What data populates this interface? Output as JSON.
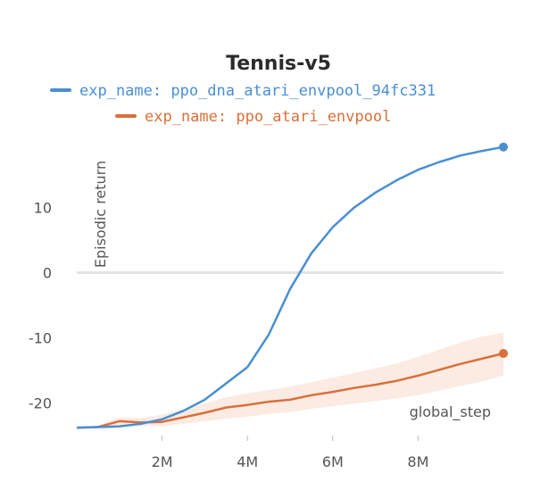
{
  "chart_data": {
    "type": "line",
    "title": "Tennis-v5",
    "xlabel": "global_step",
    "ylabel": "Episodic return",
    "xlim": [
      0,
      10000000
    ],
    "ylim": [
      -25,
      22
    ],
    "x_ticks": [
      {
        "value": 2000000,
        "label": "2M"
      },
      {
        "value": 4000000,
        "label": "4M"
      },
      {
        "value": 6000000,
        "label": "6M"
      },
      {
        "value": 8000000,
        "label": "8M"
      }
    ],
    "y_ticks": [
      {
        "value": 10,
        "label": "10"
      },
      {
        "value": 0,
        "label": "0"
      },
      {
        "value": -10,
        "label": "-10"
      },
      {
        "value": -20,
        "label": "-20"
      }
    ],
    "grid": "horizontal zero line only",
    "legend_position": "top",
    "series": [
      {
        "name": "exp_name: ppo_dna_atari_envpool_94fc331",
        "color": "#4a8fd2",
        "x": [
          0,
          500000,
          1000000,
          1500000,
          2000000,
          2500000,
          3000000,
          3500000,
          4000000,
          4500000,
          5000000,
          5500000,
          6000000,
          6500000,
          7000000,
          7500000,
          8000000,
          8500000,
          9000000,
          9500000,
          10000000
        ],
        "y": [
          -23.8,
          -23.7,
          -23.6,
          -23.2,
          -22.5,
          -21.2,
          -19.5,
          -17.0,
          -14.5,
          -9.5,
          -2.5,
          3.0,
          7.0,
          10.0,
          12.3,
          14.2,
          15.8,
          17.0,
          18.0,
          18.7,
          19.3
        ]
      },
      {
        "name": "exp_name: ppo_atari_envpool",
        "color": "#d9703a",
        "band_color": "#fbe4da",
        "x": [
          0,
          500000,
          1000000,
          1500000,
          2000000,
          2500000,
          3000000,
          3500000,
          4000000,
          4500000,
          5000000,
          5500000,
          6000000,
          6500000,
          7000000,
          7500000,
          8000000,
          8500000,
          9000000,
          9500000,
          10000000
        ],
        "y": [
          -23.8,
          -23.7,
          -22.8,
          -23.0,
          -22.9,
          -22.2,
          -21.5,
          -20.7,
          -20.3,
          -19.8,
          -19.5,
          -18.8,
          -18.3,
          -17.7,
          -17.2,
          -16.6,
          -15.8,
          -14.9,
          -14.0,
          -13.2,
          -12.4
        ],
        "y_lower": [
          -23.8,
          -23.9,
          -23.4,
          -23.6,
          -23.6,
          -23.2,
          -22.8,
          -22.4,
          -22.1,
          -21.7,
          -21.4,
          -20.9,
          -20.5,
          -20.1,
          -19.7,
          -19.3,
          -18.8,
          -18.1,
          -17.4,
          -16.7,
          -15.8
        ],
        "y_upper": [
          -23.8,
          -23.5,
          -22.2,
          -22.3,
          -21.8,
          -21.0,
          -20.1,
          -19.1,
          -18.5,
          -18.0,
          -17.5,
          -16.8,
          -16.1,
          -15.4,
          -14.7,
          -13.9,
          -12.9,
          -11.8,
          -10.7,
          -9.8,
          -9.2
        ]
      }
    ]
  }
}
